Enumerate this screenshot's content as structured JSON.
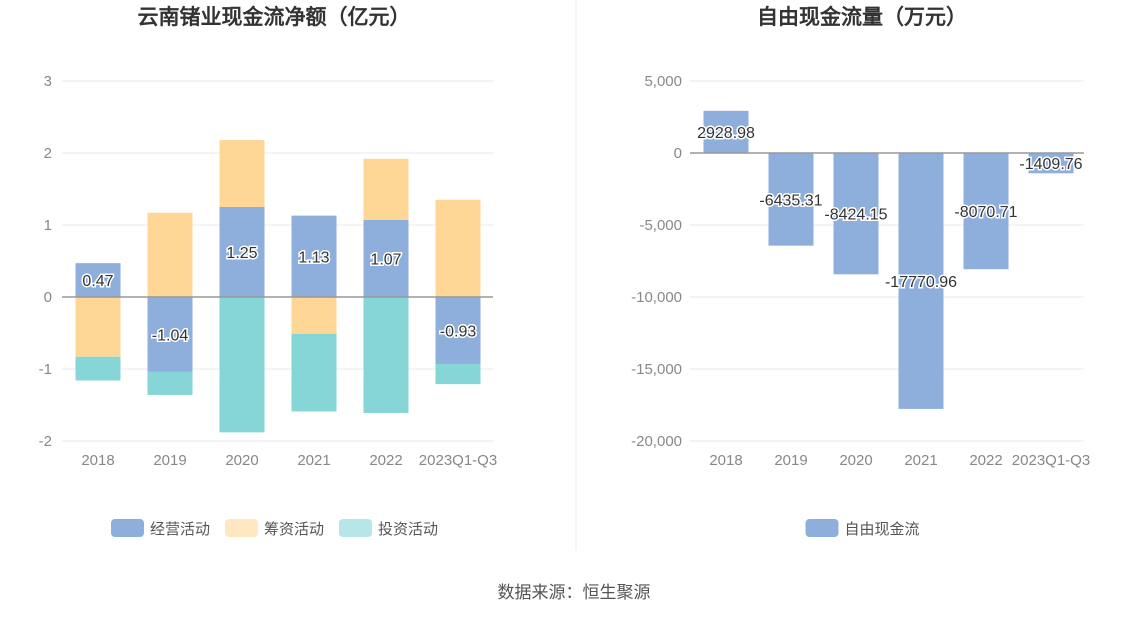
{
  "source": "数据来源：恒生聚源",
  "chart_data": [
    {
      "type": "bar",
      "stacked": true,
      "title": "云南锗业现金流净额（亿元）",
      "categories": [
        "2018",
        "2019",
        "2020",
        "2021",
        "2022",
        "2023Q1-Q3"
      ],
      "ylim": [
        -2,
        3
      ],
      "yticks": [
        "3",
        "2",
        "1",
        "0",
        "-1",
        "-2"
      ],
      "legend_position": "bottom",
      "series": [
        {
          "name": "经营活动",
          "color": "#8eaedb",
          "values": [
            0.47,
            -1.04,
            1.25,
            1.13,
            1.07,
            -0.93
          ],
          "labels": [
            "0.47",
            "-1.04",
            "1.25",
            "1.13",
            "1.07",
            "-0.93"
          ]
        },
        {
          "name": "筹资活动",
          "color": "#fed797",
          "values": [
            -0.83,
            1.17,
            0.93,
            -0.51,
            0.85,
            1.35
          ]
        },
        {
          "name": "投资活动",
          "color": "#86d6d8",
          "values": [
            -0.33,
            -0.32,
            -1.88,
            -1.08,
            -1.61,
            -0.28
          ]
        }
      ]
    },
    {
      "type": "bar",
      "title": "自由现金流量（万元）",
      "categories": [
        "2018",
        "2019",
        "2020",
        "2021",
        "2022",
        "2023Q1-Q3"
      ],
      "ylim": [
        -20000,
        5000
      ],
      "yticks": [
        "5,000",
        "0",
        "-5,000",
        "-10,000",
        "-15,000",
        "-20,000"
      ],
      "legend_position": "bottom",
      "series": [
        {
          "name": "自由现金流",
          "color": "#8eaedb",
          "values": [
            2928.98,
            -6435.31,
            -8424.15,
            -17770.96,
            -8070.71,
            -1409.76
          ],
          "labels": [
            "2928.98",
            "-6435.31",
            "-8424.15",
            "-17770.96",
            "-8070.71",
            "-1409.76"
          ]
        }
      ]
    }
  ]
}
